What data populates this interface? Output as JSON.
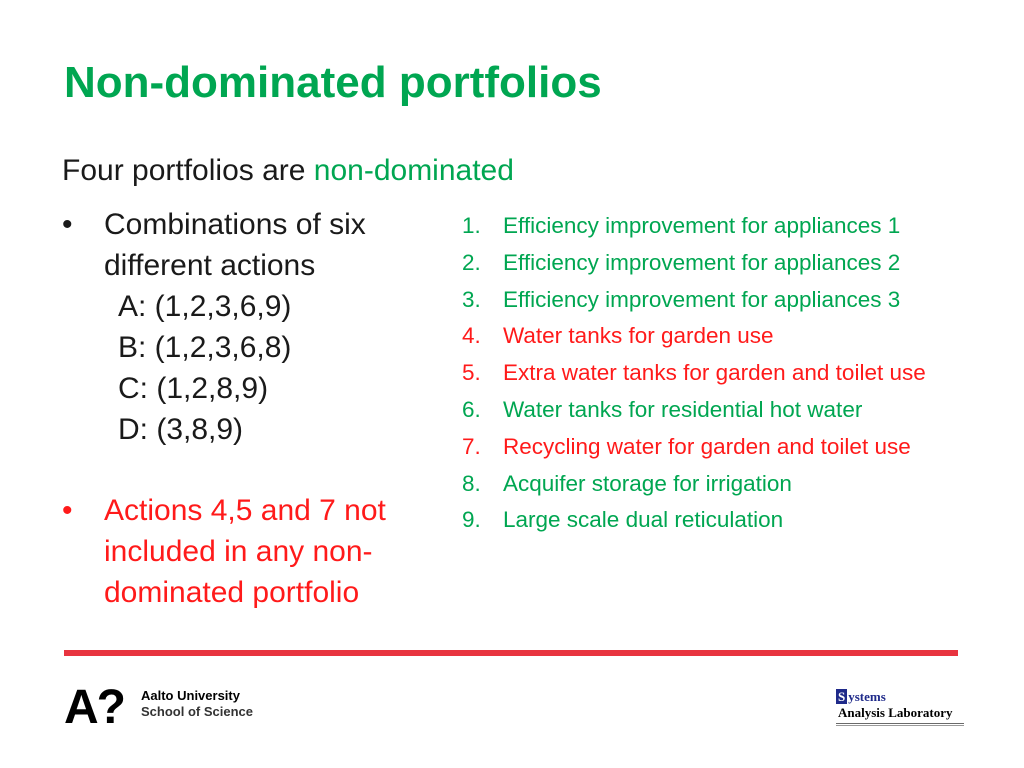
{
  "title": "Non-dominated portfolios",
  "subtitle": {
    "prefix": "Four portfolios are ",
    "highlight": "non-dominated"
  },
  "bullet_char": "•",
  "combinations": {
    "heading": "Combinations of six different actions",
    "items": [
      "A: (1,2,3,6,9)",
      "B: (1,2,3,6,8)",
      "C: (1,2,8,9)",
      "D: (3,8,9)"
    ]
  },
  "note": "Actions 4,5 and 7 not included in any non-dominated portfolio",
  "actions": [
    {
      "num": "1.",
      "label": "Efficiency improvement for appliances 1",
      "color": "#00a651"
    },
    {
      "num": "2.",
      "label": "Efficiency improvement for appliances 2",
      "color": "#00a651"
    },
    {
      "num": "3.",
      "label": "Efficiency improvement for appliances 3",
      "color": "#00a651"
    },
    {
      "num": "4.",
      "label": "Water tanks for garden use",
      "color": "#ff1a1a"
    },
    {
      "num": "5.",
      "label": "Extra water tanks for garden and toilet use",
      "color": "#ff1a1a"
    },
    {
      "num": "6.",
      "label": "Water tanks for residential hot water",
      "color": "#00a651"
    },
    {
      "num": "7.",
      "label": "Recycling water for garden and toilet use",
      "color": "#ff1a1a"
    },
    {
      "num": "8.",
      "label": "Acquifer storage for irrigation",
      "color": "#00a651"
    },
    {
      "num": "9.",
      "label": "Large scale dual reticulation",
      "color": "#00a651"
    }
  ],
  "footer": {
    "aalto_mark": "A?",
    "aalto_name": "Aalto University",
    "aalto_school": "School of Science",
    "sal_initial": "S",
    "sal_word1": "ystems",
    "sal_word2": "Analysis Laboratory"
  },
  "colors": {
    "accent_green": "#00a651",
    "accent_red": "#ff1a1a",
    "rule_red": "#e8343f"
  }
}
